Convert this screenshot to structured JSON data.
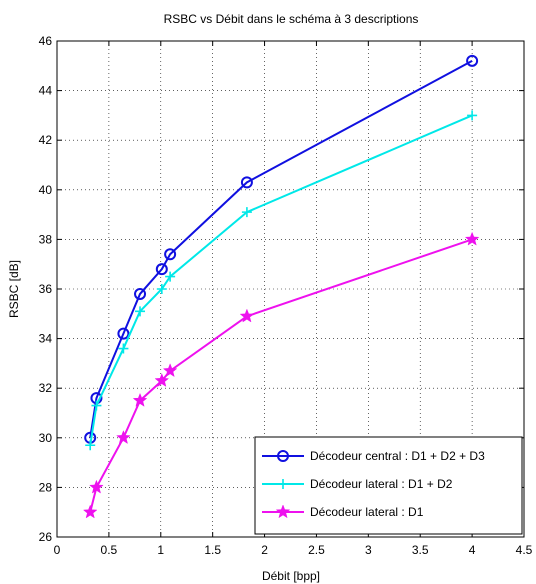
{
  "chart_data": {
    "type": "line",
    "title": "RSBC vs Débit dans le schéma à 3 descriptions",
    "xlabel": "Débit [bpp]",
    "ylabel": "RSBC [dB]",
    "xlim": [
      0,
      4.5
    ],
    "ylim": [
      26,
      46
    ],
    "xticks": [
      "0",
      "0.5",
      "1",
      "1.5",
      "2",
      "2.5",
      "3",
      "3.5",
      "4",
      "4.5"
    ],
    "yticks": [
      "26",
      "28",
      "30",
      "32",
      "34",
      "36",
      "38",
      "40",
      "42",
      "44",
      "46"
    ],
    "grid": true,
    "legend_position": "bottom-right",
    "series": [
      {
        "name": "Décodeur central : D1 + D2 + D3",
        "color": "#1010e0",
        "marker": "circle",
        "x": [
          0.32,
          0.38,
          0.64,
          0.8,
          1.01,
          1.09,
          1.83,
          4.0
        ],
        "y": [
          30.0,
          31.6,
          34.2,
          35.8,
          36.8,
          37.4,
          40.3,
          45.2
        ]
      },
      {
        "name": "Décodeur lateral : D1 + D2",
        "color": "#00e8e8",
        "marker": "plus",
        "x": [
          0.32,
          0.38,
          0.64,
          0.8,
          1.01,
          1.09,
          1.83,
          4.0
        ],
        "y": [
          29.7,
          31.3,
          33.6,
          35.1,
          36.0,
          36.5,
          39.1,
          43.0
        ]
      },
      {
        "name": "Décodeur lateral : D1",
        "color": "#ee11ee",
        "marker": "star",
        "x": [
          0.32,
          0.38,
          0.64,
          0.8,
          1.01,
          1.09,
          1.83,
          4.0
        ],
        "y": [
          27.0,
          28.0,
          30.0,
          31.5,
          32.3,
          32.7,
          34.9,
          38.0
        ]
      }
    ]
  }
}
